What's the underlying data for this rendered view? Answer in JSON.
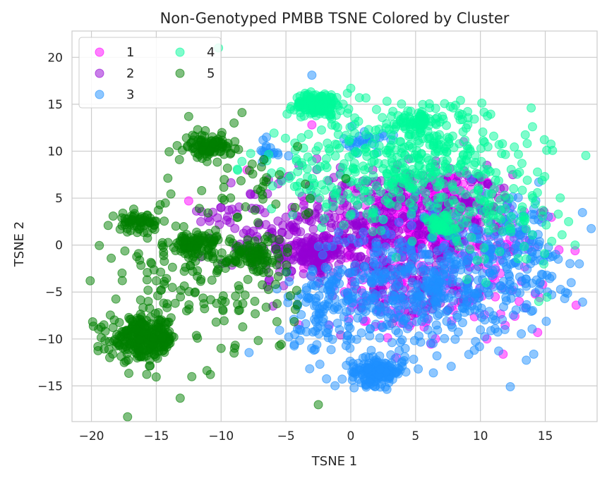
{
  "chart_data": {
    "type": "scatter",
    "title": "Non-Genotyped PMBB TSNE Colored by Cluster",
    "xlabel": "TSNE 1",
    "ylabel": "TSNE 2",
    "xlim": [
      -21.5,
      19.0
    ],
    "ylim": [
      -18.8,
      22.8
    ],
    "xticks": [
      -20,
      -15,
      -10,
      -5,
      0,
      5,
      10,
      15
    ],
    "yticks": [
      -15,
      -10,
      -5,
      0,
      5,
      10,
      15,
      20
    ],
    "grid": true,
    "legend_position": "top-left",
    "legend_columns": 2,
    "series": [
      {
        "name": "1",
        "color": "#ff00ff",
        "blobs": [
          {
            "cx": 6.5,
            "cy": 3.5,
            "sx": 2.5,
            "sy": 2.5,
            "n": 220
          },
          {
            "cx": 2.0,
            "cy": 0.5,
            "sx": 3.0,
            "sy": 2.5,
            "n": 120
          },
          {
            "cx": 9.0,
            "cy": -3.0,
            "sx": 3.0,
            "sy": 3.0,
            "n": 120
          },
          {
            "cx": 3.5,
            "cy": -6.5,
            "sx": 2.5,
            "sy": 2.0,
            "n": 60
          }
        ],
        "points": [
          [
            -12.5,
            4.7
          ],
          [
            -8.0,
            8.0
          ],
          [
            14.8,
            -4.2
          ],
          [
            -4.0,
            -8.5
          ],
          [
            -3.0,
            12.8
          ],
          [
            17.3,
            -0.6
          ],
          [
            8.7,
            11.0
          ],
          [
            10.5,
            -10.0
          ]
        ]
      },
      {
        "name": "2",
        "color": "#9400d3",
        "blobs": [
          {
            "cx": 1.0,
            "cy": 2.0,
            "sx": 3.5,
            "sy": 3.0,
            "n": 260
          },
          {
            "cx": -3.0,
            "cy": -1.0,
            "sx": 1.0,
            "sy": 0.8,
            "n": 90
          },
          {
            "cx": -5.0,
            "cy": 0.0,
            "sx": 2.0,
            "sy": 2.0,
            "n": 70
          },
          {
            "cx": 8.0,
            "cy": 4.0,
            "sx": 3.0,
            "sy": 2.5,
            "n": 110
          },
          {
            "cx": 5.0,
            "cy": -3.0,
            "sx": 3.0,
            "sy": 2.5,
            "n": 100
          },
          {
            "cx": -8.5,
            "cy": 3.5,
            "sx": 1.5,
            "sy": 2.0,
            "n": 30
          }
        ],
        "points": [
          [
            -10.0,
            4.0
          ],
          [
            -9.5,
            3.0
          ],
          [
            -8.0,
            -0.5
          ],
          [
            -6.0,
            -6.5
          ],
          [
            12.5,
            7.5
          ],
          [
            10.5,
            8.5
          ],
          [
            -4.0,
            8.5
          ]
        ]
      },
      {
        "name": "3",
        "color": "#1e90ff",
        "blobs": [
          {
            "cx": 2.0,
            "cy": -13.5,
            "sx": 1.0,
            "sy": 0.7,
            "n": 170
          },
          {
            "cx": 4.0,
            "cy": -5.0,
            "sx": 4.0,
            "sy": 3.5,
            "n": 360
          },
          {
            "cx": 9.0,
            "cy": -3.0,
            "sx": 3.5,
            "sy": 3.5,
            "n": 200
          },
          {
            "cx": 1.0,
            "cy": 11.0,
            "sx": 0.8,
            "sy": 0.6,
            "n": 30
          },
          {
            "cx": -2.0,
            "cy": -7.0,
            "sx": 1.5,
            "sy": 2.5,
            "n": 80
          },
          {
            "cx": 13.0,
            "cy": 0.0,
            "sx": 2.0,
            "sy": 3.0,
            "n": 90
          },
          {
            "cx": -6.5,
            "cy": 10.0,
            "sx": 0.6,
            "sy": 0.5,
            "n": 15
          }
        ],
        "points": [
          [
            -3.0,
            18.1
          ],
          [
            -6.5,
            11.5
          ],
          [
            -4.8,
            9.5
          ],
          [
            16.0,
            -1.5
          ],
          [
            17.0,
            -4.0
          ],
          [
            16.5,
            -5.7
          ],
          [
            14.5,
            6.7
          ]
        ]
      },
      {
        "name": "4",
        "color": "#00fa9a",
        "blobs": [
          {
            "cx": -2.5,
            "cy": 15.0,
            "sx": 0.9,
            "sy": 0.6,
            "n": 150
          },
          {
            "cx": 5.0,
            "cy": 13.3,
            "sx": 0.8,
            "sy": 0.6,
            "n": 70
          },
          {
            "cx": 6.8,
            "cy": 2.0,
            "sx": 0.7,
            "sy": 0.6,
            "n": 45
          },
          {
            "cx": 6.0,
            "cy": 9.0,
            "sx": 4.0,
            "sy": 3.0,
            "n": 280
          },
          {
            "cx": 0.0,
            "cy": 8.0,
            "sx": 4.0,
            "sy": 3.0,
            "n": 150
          },
          {
            "cx": 11.0,
            "cy": 3.0,
            "sx": 2.5,
            "sy": 2.5,
            "n": 90
          }
        ],
        "points": [
          [
            -10.2,
            21.0
          ],
          [
            -1.5,
            16.0
          ],
          [
            0.0,
            16.7
          ],
          [
            16.0,
            3.3
          ],
          [
            16.8,
            2.5
          ],
          [
            17.3,
            0.0
          ],
          [
            15.5,
            0.4
          ],
          [
            14.5,
            -6.0
          ],
          [
            -4.2,
            9.2
          ],
          [
            -2.5,
            10.5
          ]
        ]
      },
      {
        "name": "5",
        "color": "#007f00",
        "blobs": [
          {
            "cx": -16.0,
            "cy": -10.0,
            "sx": 1.3,
            "sy": 1.1,
            "n": 260
          },
          {
            "cx": -11.0,
            "cy": 10.5,
            "sx": 0.9,
            "sy": 0.6,
            "n": 100
          },
          {
            "cx": -16.5,
            "cy": 2.5,
            "sx": 0.8,
            "sy": 0.5,
            "n": 60
          },
          {
            "cx": -12.0,
            "cy": 0.0,
            "sx": 1.0,
            "sy": 0.7,
            "n": 100
          },
          {
            "cx": -7.5,
            "cy": -1.0,
            "sx": 1.0,
            "sy": 1.0,
            "n": 90
          },
          {
            "cx": -14.0,
            "cy": -5.0,
            "sx": 2.5,
            "sy": 5.0,
            "n": 90
          },
          {
            "cx": -8.0,
            "cy": -5.5,
            "sx": 2.0,
            "sy": 3.0,
            "n": 50
          },
          {
            "cx": -8.0,
            "cy": 6.0,
            "sx": 2.5,
            "sy": 3.0,
            "n": 40
          }
        ],
        "points": [
          [
            -12.5,
            13.7
          ],
          [
            -19.5,
            -10.8
          ],
          [
            -2.5,
            -17.0
          ],
          [
            -15.0,
            -3.8
          ],
          [
            -12.0,
            -5.0
          ],
          [
            -10.0,
            -11.0
          ],
          [
            -9.0,
            -11.5
          ],
          [
            -11.5,
            5.8
          ],
          [
            -9.0,
            13.0
          ],
          [
            -5.5,
            7.5
          ],
          [
            -4.3,
            4.0
          ],
          [
            -3.5,
            6.5
          ]
        ]
      }
    ]
  }
}
